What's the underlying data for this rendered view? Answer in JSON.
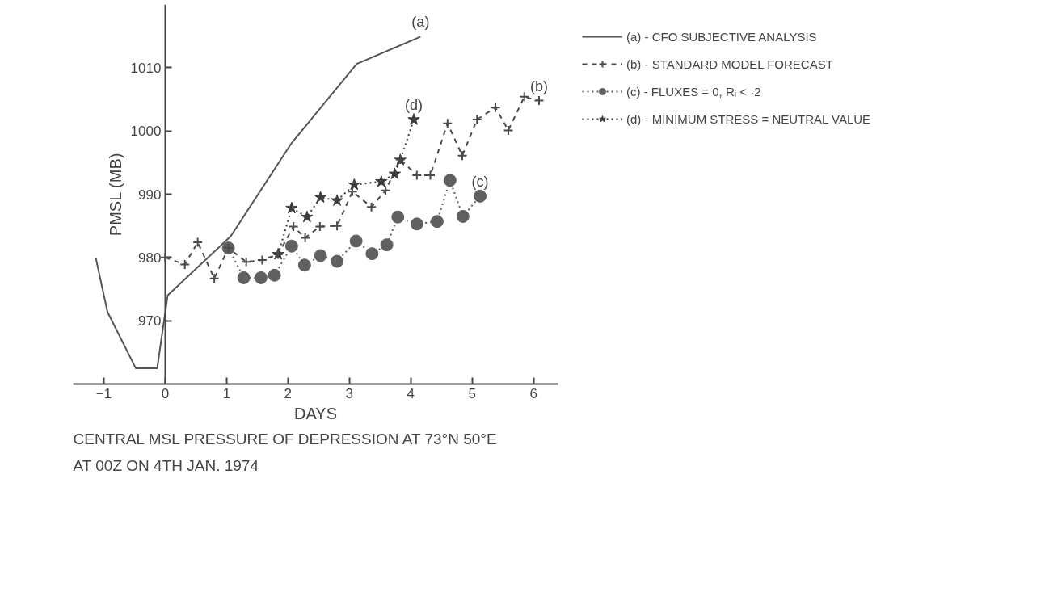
{
  "chart_data": {
    "type": "line",
    "xlabel": "DAYS",
    "ylabel": "PMSL (MB)",
    "xlim": [
      -1.5,
      6.4
    ],
    "ylim": [
      960,
      1020
    ],
    "xticks": [
      -1,
      0,
      1,
      2,
      3,
      4,
      5,
      6
    ],
    "yticks": [
      970,
      980,
      990,
      1000,
      1010
    ],
    "grid": false,
    "legend": "right",
    "series": [
      {
        "name": "(a) - CFO SUBJECTIVE ANALYSIS",
        "color": "#555555",
        "line_style": "solid",
        "marker": "none",
        "x": [
          -1.13,
          -0.94,
          -0.48,
          -0.13,
          0.04,
          1.07,
          2.06,
          3.12,
          4.16
        ],
        "values": [
          979.9,
          971.4,
          962.5,
          962.5,
          974.0,
          983.4,
          998.1,
          1010.6,
          1014.9
        ]
      },
      {
        "name": "(b) - STANDARD MODEL FORECAST",
        "color": "#4a4a4a",
        "line_style": "dashed",
        "marker": "cross",
        "x": [
          0,
          0.32,
          0.53,
          0.8,
          1.03,
          1.32,
          1.58,
          1.84,
          2.09,
          2.28,
          2.52,
          2.8,
          3.05,
          3.36,
          3.59,
          3.83,
          4.1,
          4.32,
          4.6,
          4.84,
          5.08,
          5.38,
          5.59,
          5.85,
          6.09
        ],
        "values": [
          980,
          978.9,
          982.4,
          976.7,
          981.5,
          979.3,
          979.6,
          980.5,
          984.9,
          983.1,
          984.9,
          985.0,
          990.4,
          988.0,
          990.6,
          995.5,
          993.0,
          993.0,
          1001.2,
          996.1,
          1001.8,
          1003.7,
          1000.1,
          1005.4,
          1004.8
        ]
      },
      {
        "name": "(c) - FLUXES = 0, Rᵢ < ·2",
        "color": "#606060",
        "line_style": "dotted",
        "marker": "circle",
        "x": [
          1.03,
          1.28,
          1.56,
          1.78,
          2.06,
          2.27,
          2.53,
          2.8,
          3.11,
          3.37,
          3.61,
          3.79,
          4.1,
          4.43,
          4.64,
          4.85,
          5.13
        ],
        "values": [
          981.5,
          976.8,
          976.8,
          977.2,
          981.8,
          978.8,
          980.3,
          979.4,
          982.6,
          980.6,
          982.0,
          986.4,
          985.3,
          985.7,
          992.2,
          986.5,
          989.7
        ]
      },
      {
        "name": "(d) - MINIMUM STRESS = NEUTRAL VALUE",
        "color": "#3c3c3c",
        "line_style": "dotted",
        "marker": "star",
        "x": [
          1.84,
          2.06,
          2.31,
          2.53,
          2.8,
          3.08,
          3.52,
          3.74,
          3.83,
          4.05
        ],
        "values": [
          980.5,
          987.8,
          986.4,
          989.5,
          989.0,
          991.5,
          992.0,
          993.2,
          995.4,
          1001.8
        ]
      }
    ],
    "annotations": [
      {
        "text": "(a)",
        "x": 4.16,
        "y": 1014.9
      },
      {
        "text": "(b)",
        "x": 6.09,
        "y": 1004.8
      },
      {
        "text": "(c)",
        "x": 5.13,
        "y": 989.7
      },
      {
        "text": "(d)",
        "x": 4.05,
        "y": 1001.8
      },
      "CENTRAL MSL PRESSURE OF DEPRESSION AT 73°N 50°E",
      "AT 00Z ON 4TH JAN. 1974"
    ]
  }
}
